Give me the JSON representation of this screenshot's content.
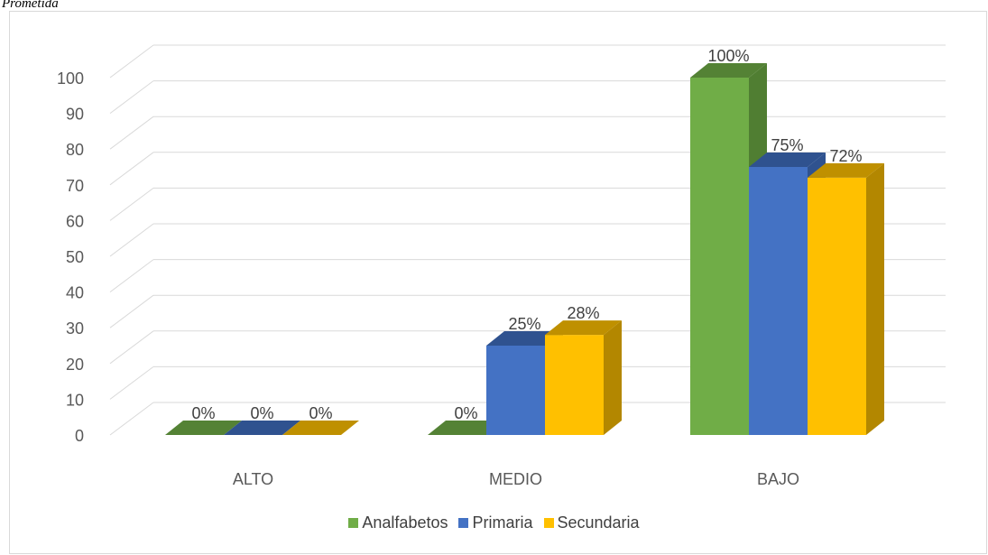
{
  "caption": "Prometida",
  "chart_data": {
    "type": "bar",
    "categories": [
      "ALTO",
      "MEDIO",
      "BAJO"
    ],
    "series": [
      {
        "name": "Analfabetos",
        "values": [
          0,
          0,
          100
        ],
        "labels": [
          "0%",
          "0%",
          "100%"
        ]
      },
      {
        "name": "Primaria",
        "values": [
          0,
          25,
          75
        ],
        "labels": [
          "0%",
          "25%",
          "75%"
        ]
      },
      {
        "name": "Secundaria",
        "values": [
          0,
          28,
          72
        ],
        "labels": [
          "0%",
          "28%",
          "72%"
        ]
      }
    ],
    "yticks": [
      "0",
      "10",
      "20",
      "30",
      "40",
      "50",
      "60",
      "70",
      "80",
      "90",
      "100"
    ],
    "ylim": [
      0,
      100
    ],
    "grid": true,
    "legend": "bottom",
    "colors": {
      "Analfabetos": {
        "front": "#70ad47",
        "top": "#548235",
        "side": "#507e32"
      },
      "Primaria": {
        "front": "#4472c4",
        "top": "#2f528f",
        "side": "#2f528f"
      },
      "Secundaria": {
        "front": "#ffc000",
        "top": "#bf9000",
        "side": "#b38700"
      }
    }
  }
}
